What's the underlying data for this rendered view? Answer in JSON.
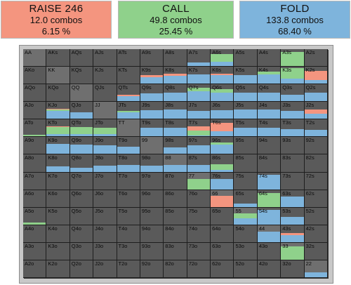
{
  "colors": {
    "raise": "#f4957f",
    "call": "#8fd18b",
    "fold": "#7eb4dc",
    "cell_bg": "#5a5a5a",
    "pair_bg": "#6f6f6f"
  },
  "summary": {
    "raise": {
      "title": "RAISE 246",
      "combos": "12.0 combos",
      "percent": "6.15 %"
    },
    "call": {
      "title": "CALL",
      "combos": "49.8 combos",
      "percent": "25.45 %"
    },
    "fold": {
      "title": "FOLD",
      "combos": "133.8 combos",
      "percent": "68.40 %"
    }
  },
  "hand_grid": [
    [
      {
        "label": "AA",
        "raise": 0,
        "call": 0,
        "fold": 0
      },
      {
        "label": "AKs",
        "raise": 0,
        "call": 0,
        "fold": 0
      },
      {
        "label": "AQs",
        "raise": 0,
        "call": 0,
        "fold": 0
      },
      {
        "label": "AJs",
        "raise": 0,
        "call": 0,
        "fold": 0
      },
      {
        "label": "ATs",
        "raise": 0,
        "call": 0,
        "fold": 0
      },
      {
        "label": "A9s",
        "raise": 0,
        "call": 0,
        "fold": 0
      },
      {
        "label": "A8s",
        "raise": 0,
        "call": 0,
        "fold": 0
      },
      {
        "label": "A7s",
        "raise": 0,
        "call": 0,
        "fold": 0.2
      },
      {
        "label": "A6s",
        "raise": 0,
        "call": 0.45,
        "fold": 0.25
      },
      {
        "label": "A5s",
        "raise": 0,
        "call": 0,
        "fold": 0
      },
      {
        "label": "A4s",
        "raise": 0,
        "call": 0,
        "fold": 0
      },
      {
        "label": "A3s",
        "raise": 0,
        "call": 0.85,
        "fold": 0
      },
      {
        "label": "A2s",
        "raise": 0,
        "call": 0,
        "fold": 0
      }
    ],
    [
      {
        "label": "AKo",
        "raise": 0,
        "call": 0,
        "fold": 0
      },
      {
        "label": "KK",
        "raise": 0,
        "call": 0,
        "fold": 0
      },
      {
        "label": "KQs",
        "raise": 0,
        "call": 0,
        "fold": 0
      },
      {
        "label": "KJs",
        "raise": 0,
        "call": 0,
        "fold": 0
      },
      {
        "label": "KTs",
        "raise": 0,
        "call": 0,
        "fold": 0
      },
      {
        "label": "K9s",
        "raise": 0.1,
        "call": 0,
        "fold": 0.4
      },
      {
        "label": "K8s",
        "raise": 0.15,
        "call": 0,
        "fold": 0.45
      },
      {
        "label": "K7s",
        "raise": 0,
        "call": 0,
        "fold": 0.55
      },
      {
        "label": "K6s",
        "raise": 0.1,
        "call": 0,
        "fold": 0.5
      },
      {
        "label": "K5s",
        "raise": 0,
        "call": 0,
        "fold": 0.5
      },
      {
        "label": "K4s",
        "raise": 0,
        "call": 0.15,
        "fold": 0.55
      },
      {
        "label": "K3s",
        "raise": 0,
        "call": 0.6,
        "fold": 0.3
      },
      {
        "label": "K2s",
        "raise": 0.55,
        "call": 0,
        "fold": 0.2
      }
    ],
    [
      {
        "label": "AQo",
        "raise": 0,
        "call": 0,
        "fold": 0
      },
      {
        "label": "KQo",
        "raise": 0,
        "call": 0,
        "fold": 0
      },
      {
        "label": "QQ",
        "raise": 0,
        "call": 0,
        "fold": 0
      },
      {
        "label": "QJs",
        "raise": 0,
        "call": 0,
        "fold": 0
      },
      {
        "label": "QTs",
        "raise": 0.1,
        "call": 0,
        "fold": 0.3
      },
      {
        "label": "Q9s",
        "raise": 0,
        "call": 0,
        "fold": 0.45
      },
      {
        "label": "Q8s",
        "raise": 0,
        "call": 0,
        "fold": 0.5
      },
      {
        "label": "Q7s",
        "raise": 0,
        "call": 0.2,
        "fold": 0.6
      },
      {
        "label": "Q6s",
        "raise": 0,
        "call": 0.2,
        "fold": 0.5
      },
      {
        "label": "Q5s",
        "raise": 0,
        "call": 0,
        "fold": 0.5
      },
      {
        "label": "Q4s",
        "raise": 0,
        "call": 0,
        "fold": 0.5
      },
      {
        "label": "Q3s",
        "raise": 0,
        "call": 0,
        "fold": 0.4
      },
      {
        "label": "Q2s",
        "raise": 0,
        "call": 0,
        "fold": 0.5
      }
    ],
    [
      {
        "label": "AJo",
        "raise": 0,
        "call": 0,
        "fold": 0
      },
      {
        "label": "KJo",
        "raise": 0.05,
        "call": 0.1,
        "fold": 0.45
      },
      {
        "label": "QJo",
        "raise": 0,
        "call": 0,
        "fold": 0.4
      },
      {
        "label": "JJ",
        "raise": 0,
        "call": 0,
        "fold": 0
      },
      {
        "label": "JTs",
        "raise": 0,
        "call": 0.05,
        "fold": 0.4
      },
      {
        "label": "J9s",
        "raise": 0,
        "call": 0,
        "fold": 0.5
      },
      {
        "label": "J8s",
        "raise": 0,
        "call": 0,
        "fold": 0.55
      },
      {
        "label": "J7s",
        "raise": 0,
        "call": 0,
        "fold": 0.45
      },
      {
        "label": "J6s",
        "raise": 0,
        "call": 0,
        "fold": 0.5
      },
      {
        "label": "J5s",
        "raise": 0,
        "call": 0,
        "fold": 0.55
      },
      {
        "label": "J4s",
        "raise": 0,
        "call": 0,
        "fold": 0.55
      },
      {
        "label": "J3s",
        "raise": 0,
        "call": 0,
        "fold": 0.45
      },
      {
        "label": "J2s",
        "raise": 0.25,
        "call": 0,
        "fold": 0.3
      }
    ],
    [
      {
        "label": "ATo",
        "raise": 0,
        "call": 0.1,
        "fold": 0
      },
      {
        "label": "KTo",
        "raise": 0.05,
        "call": 0.4,
        "fold": 0.15
      },
      {
        "label": "QTo",
        "raise": 0,
        "call": 0.4,
        "fold": 0.15
      },
      {
        "label": "JTo",
        "raise": 0,
        "call": 0.35,
        "fold": 0.15
      },
      {
        "label": "TT",
        "raise": 0,
        "call": 0,
        "fold": 0
      },
      {
        "label": "T9s",
        "raise": 0,
        "call": 0,
        "fold": 0.5
      },
      {
        "label": "T8s",
        "raise": 0,
        "call": 0,
        "fold": 0.5
      },
      {
        "label": "T7s",
        "raise": 0.25,
        "call": 0.3,
        "fold": 0.05
      },
      {
        "label": "T6s",
        "raise": 0.5,
        "call": 0,
        "fold": 0.3
      },
      {
        "label": "T5s",
        "raise": 0,
        "call": 0,
        "fold": 0.5
      },
      {
        "label": "T4s",
        "raise": 0,
        "call": 0,
        "fold": 0.5
      },
      {
        "label": "T3s",
        "raise": 0,
        "call": 0,
        "fold": 0.45
      },
      {
        "label": "T2s",
        "raise": 0,
        "call": 0,
        "fold": 0.4
      }
    ],
    [
      {
        "label": "A9o",
        "raise": 0,
        "call": 0,
        "fold": 0
      },
      {
        "label": "K9o",
        "raise": 0,
        "call": 0,
        "fold": 0.6
      },
      {
        "label": "Q9o",
        "raise": 0,
        "call": 0,
        "fold": 0.55
      },
      {
        "label": "J9o",
        "raise": 0,
        "call": 0,
        "fold": 0.5
      },
      {
        "label": "T9o",
        "raise": 0,
        "call": 0,
        "fold": 0.45
      },
      {
        "label": "99",
        "raise": 0,
        "call": 0,
        "fold": 0
      },
      {
        "label": "98s",
        "raise": 0,
        "call": 0,
        "fold": 0.4
      },
      {
        "label": "97s",
        "raise": 0,
        "call": 0,
        "fold": 0.5
      },
      {
        "label": "96s",
        "raise": 0,
        "call": 0.15,
        "fold": 0.55
      },
      {
        "label": "95s",
        "raise": 0,
        "call": 0,
        "fold": 0
      },
      {
        "label": "94s",
        "raise": 0,
        "call": 0,
        "fold": 0
      },
      {
        "label": "93s",
        "raise": 0,
        "call": 0,
        "fold": 0
      },
      {
        "label": "92s",
        "raise": 0,
        "call": 0,
        "fold": 0
      }
    ],
    [
      {
        "label": "A8o",
        "raise": 0,
        "call": 0,
        "fold": 0
      },
      {
        "label": "K8o",
        "raise": 0,
        "call": 0,
        "fold": 0.3
      },
      {
        "label": "Q8o",
        "raise": 0,
        "call": 0,
        "fold": 0.25
      },
      {
        "label": "J8o",
        "raise": 0,
        "call": 0,
        "fold": 0.35
      },
      {
        "label": "T8o",
        "raise": 0,
        "call": 0,
        "fold": 0.4
      },
      {
        "label": "98o",
        "raise": 0,
        "call": 0,
        "fold": 0.35
      },
      {
        "label": "88",
        "raise": 0,
        "call": 0,
        "fold": 0.4
      },
      {
        "label": "87s",
        "raise": 0,
        "call": 0,
        "fold": 0.4
      },
      {
        "label": "86s",
        "raise": 0,
        "call": 0.35,
        "fold": 0.1
      },
      {
        "label": "85s",
        "raise": 0,
        "call": 0,
        "fold": 0
      },
      {
        "label": "84s",
        "raise": 0,
        "call": 0,
        "fold": 0
      },
      {
        "label": "83s",
        "raise": 0,
        "call": 0,
        "fold": 0
      },
      {
        "label": "82s",
        "raise": 0,
        "call": 0,
        "fold": 0
      }
    ],
    [
      {
        "label": "A7o",
        "raise": 0,
        "call": 0,
        "fold": 0
      },
      {
        "label": "K7o",
        "raise": 0,
        "call": 0,
        "fold": 0
      },
      {
        "label": "Q7o",
        "raise": 0,
        "call": 0,
        "fold": 0
      },
      {
        "label": "J7o",
        "raise": 0,
        "call": 0,
        "fold": 0
      },
      {
        "label": "T7o",
        "raise": 0,
        "call": 0,
        "fold": 0
      },
      {
        "label": "97o",
        "raise": 0,
        "call": 0,
        "fold": 0
      },
      {
        "label": "87o",
        "raise": 0,
        "call": 0,
        "fold": 0
      },
      {
        "label": "77",
        "raise": 0,
        "call": 0.6,
        "fold": 0
      },
      {
        "label": "76s",
        "raise": 0,
        "call": 0,
        "fold": 0.6
      },
      {
        "label": "75s",
        "raise": 0,
        "call": 0,
        "fold": 0
      },
      {
        "label": "74s",
        "raise": 0,
        "call": 0,
        "fold": 0.85
      },
      {
        "label": "73s",
        "raise": 0,
        "call": 0,
        "fold": 0
      },
      {
        "label": "72s",
        "raise": 0,
        "call": 0,
        "fold": 0
      }
    ],
    [
      {
        "label": "A6o",
        "raise": 0,
        "call": 0,
        "fold": 0
      },
      {
        "label": "K6o",
        "raise": 0,
        "call": 0,
        "fold": 0
      },
      {
        "label": "Q6o",
        "raise": 0,
        "call": 0,
        "fold": 0
      },
      {
        "label": "J6o",
        "raise": 0,
        "call": 0,
        "fold": 0
      },
      {
        "label": "T6o",
        "raise": 0,
        "call": 0,
        "fold": 0
      },
      {
        "label": "96o",
        "raise": 0,
        "call": 0,
        "fold": 0
      },
      {
        "label": "86o",
        "raise": 0,
        "call": 0,
        "fold": 0
      },
      {
        "label": "76o",
        "raise": 0,
        "call": 0,
        "fold": 0
      },
      {
        "label": "66",
        "raise": 0.65,
        "call": 0,
        "fold": 0
      },
      {
        "label": "65s",
        "raise": 0,
        "call": 0,
        "fold": 0.2
      },
      {
        "label": "64s",
        "raise": 0,
        "call": 0.8,
        "fold": 0
      },
      {
        "label": "63s",
        "raise": 0,
        "call": 0,
        "fold": 0.6
      },
      {
        "label": "62s",
        "raise": 0,
        "call": 0,
        "fold": 0
      }
    ],
    [
      {
        "label": "A5o",
        "raise": 0,
        "call": 0.1,
        "fold": 0
      },
      {
        "label": "K5o",
        "raise": 0,
        "call": 0,
        "fold": 0
      },
      {
        "label": "Q5o",
        "raise": 0,
        "call": 0,
        "fold": 0
      },
      {
        "label": "J5o",
        "raise": 0,
        "call": 0,
        "fold": 0
      },
      {
        "label": "T5o",
        "raise": 0,
        "call": 0,
        "fold": 0
      },
      {
        "label": "95o",
        "raise": 0,
        "call": 0,
        "fold": 0
      },
      {
        "label": "85o",
        "raise": 0,
        "call": 0,
        "fold": 0
      },
      {
        "label": "75o",
        "raise": 0,
        "call": 0,
        "fold": 0
      },
      {
        "label": "65o",
        "raise": 0,
        "call": 0,
        "fold": 0
      },
      {
        "label": "55",
        "raise": 0,
        "call": 0.3,
        "fold": 0.35
      },
      {
        "label": "54s",
        "raise": 0,
        "call": 0,
        "fold": 0.85
      },
      {
        "label": "53s",
        "raise": 0,
        "call": 0,
        "fold": 0.45
      },
      {
        "label": "52s",
        "raise": 0,
        "call": 0,
        "fold": 0
      }
    ],
    [
      {
        "label": "A4o",
        "raise": 0,
        "call": 0,
        "fold": 0
      },
      {
        "label": "K4o",
        "raise": 0,
        "call": 0,
        "fold": 0
      },
      {
        "label": "Q4o",
        "raise": 0,
        "call": 0,
        "fold": 0
      },
      {
        "label": "J4o",
        "raise": 0,
        "call": 0,
        "fold": 0
      },
      {
        "label": "T4o",
        "raise": 0,
        "call": 0,
        "fold": 0
      },
      {
        "label": "94o",
        "raise": 0,
        "call": 0,
        "fold": 0
      },
      {
        "label": "84o",
        "raise": 0,
        "call": 0,
        "fold": 0
      },
      {
        "label": "74o",
        "raise": 0,
        "call": 0,
        "fold": 0
      },
      {
        "label": "64o",
        "raise": 0,
        "call": 0,
        "fold": 0
      },
      {
        "label": "54o",
        "raise": 0,
        "call": 0,
        "fold": 0
      },
      {
        "label": "44",
        "raise": 0,
        "call": 0,
        "fold": 0.6
      },
      {
        "label": "43s",
        "raise": 0.15,
        "call": 0,
        "fold": 0.4
      },
      {
        "label": "42s",
        "raise": 0,
        "call": 0,
        "fold": 0
      }
    ],
    [
      {
        "label": "A3o",
        "raise": 0,
        "call": 0,
        "fold": 0
      },
      {
        "label": "K3o",
        "raise": 0,
        "call": 0,
        "fold": 0
      },
      {
        "label": "Q3o",
        "raise": 0,
        "call": 0,
        "fold": 0
      },
      {
        "label": "J3o",
        "raise": 0,
        "call": 0,
        "fold": 0
      },
      {
        "label": "T3o",
        "raise": 0,
        "call": 0,
        "fold": 0
      },
      {
        "label": "93o",
        "raise": 0,
        "call": 0,
        "fold": 0
      },
      {
        "label": "83o",
        "raise": 0,
        "call": 0,
        "fold": 0
      },
      {
        "label": "73o",
        "raise": 0,
        "call": 0,
        "fold": 0
      },
      {
        "label": "63o",
        "raise": 0,
        "call": 0,
        "fold": 0
      },
      {
        "label": "53o",
        "raise": 0,
        "call": 0,
        "fold": 0
      },
      {
        "label": "43o",
        "raise": 0,
        "call": 0,
        "fold": 0
      },
      {
        "label": "33",
        "raise": 0,
        "call": 0.8,
        "fold": 0
      },
      {
        "label": "32s",
        "raise": 0,
        "call": 0,
        "fold": 0
      }
    ],
    [
      {
        "label": "A2o",
        "raise": 0,
        "call": 0,
        "fold": 0
      },
      {
        "label": "K2o",
        "raise": 0,
        "call": 0,
        "fold": 0
      },
      {
        "label": "Q2o",
        "raise": 0,
        "call": 0,
        "fold": 0
      },
      {
        "label": "J2o",
        "raise": 0,
        "call": 0,
        "fold": 0
      },
      {
        "label": "T2o",
        "raise": 0,
        "call": 0,
        "fold": 0
      },
      {
        "label": "92o",
        "raise": 0,
        "call": 0,
        "fold": 0
      },
      {
        "label": "82o",
        "raise": 0,
        "call": 0,
        "fold": 0
      },
      {
        "label": "72o",
        "raise": 0,
        "call": 0,
        "fold": 0
      },
      {
        "label": "62o",
        "raise": 0,
        "call": 0,
        "fold": 0
      },
      {
        "label": "52o",
        "raise": 0,
        "call": 0,
        "fold": 0
      },
      {
        "label": "42o",
        "raise": 0,
        "call": 0,
        "fold": 0
      },
      {
        "label": "32o",
        "raise": 0,
        "call": 0,
        "fold": 0
      },
      {
        "label": "22",
        "raise": 0,
        "call": 0,
        "fold": 0.3
      }
    ]
  ]
}
